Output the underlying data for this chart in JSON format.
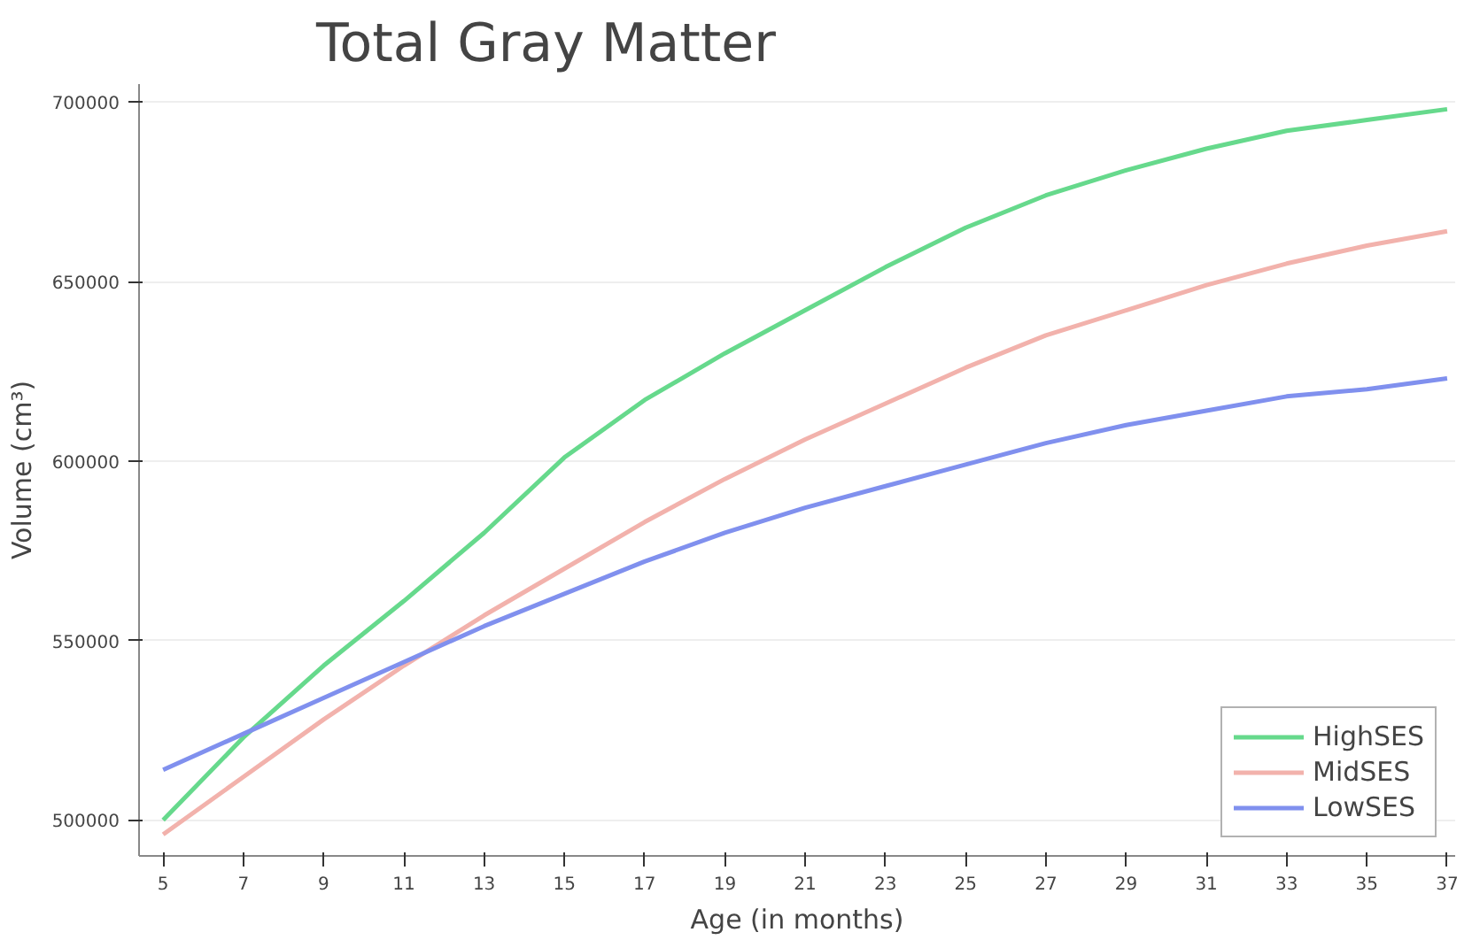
{
  "chart_data": {
    "type": "line",
    "title": "Total Gray Matter",
    "xlabel": "Age (in months)",
    "ylabel": "Volume (cm³)",
    "x": [
      5,
      7,
      9,
      11,
      13,
      15,
      17,
      19,
      21,
      23,
      25,
      27,
      29,
      31,
      33,
      35,
      37
    ],
    "series": [
      {
        "name": "HighSES",
        "color": "#66d98c",
        "values": [
          500000,
          523000,
          543000,
          561000,
          580000,
          601000,
          617000,
          630000,
          642000,
          654000,
          665000,
          674000,
          681000,
          687000,
          692000,
          695000,
          698000
        ]
      },
      {
        "name": "MidSES",
        "color": "#f2b2ac",
        "values": [
          496000,
          512000,
          528000,
          543000,
          557000,
          570000,
          583000,
          595000,
          606000,
          616000,
          626000,
          635000,
          642000,
          649000,
          655000,
          660000,
          664000
        ]
      },
      {
        "name": "LowSES",
        "color": "#8090ee",
        "values": [
          514000,
          524000,
          534000,
          544000,
          554000,
          563000,
          572000,
          580000,
          587000,
          593000,
          599000,
          605000,
          610000,
          614000,
          618000,
          620000,
          623000
        ]
      }
    ],
    "xlim": [
      4.4,
      37.2
    ],
    "ylim": [
      490000,
      705000
    ],
    "xticks": [
      5,
      7,
      9,
      11,
      13,
      15,
      17,
      19,
      21,
      23,
      25,
      27,
      29,
      31,
      33,
      35,
      37
    ],
    "yticks": [
      500000,
      550000,
      600000,
      650000,
      700000
    ],
    "grid": "y",
    "legend": "bottom right",
    "marker": "none",
    "line_style": "solid"
  }
}
